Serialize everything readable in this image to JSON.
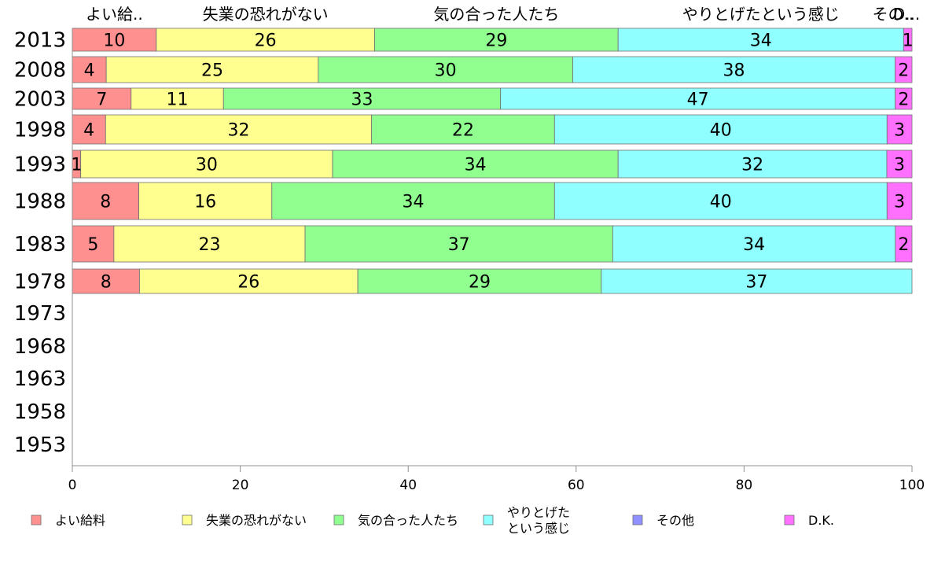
{
  "chart_data": {
    "type": "bar",
    "orientation": "horizontal",
    "stacked": "percent",
    "categories": [
      "2013",
      "2008",
      "2003",
      "1998",
      "1993",
      "1988",
      "1983",
      "1978",
      "1973",
      "1968",
      "1963",
      "1958",
      "1953"
    ],
    "series": [
      {
        "name": "よい給料",
        "top_label": "よい給..",
        "color": "#ff9090",
        "values": [
          10,
          4,
          7,
          4,
          1,
          8,
          5,
          8,
          null,
          null,
          null,
          null,
          null
        ]
      },
      {
        "name": "失業の恐れがない",
        "top_label": "失業の恐れがない",
        "color": "#ffff90",
        "values": [
          26,
          25,
          11,
          32,
          30,
          16,
          23,
          26,
          null,
          null,
          null,
          null,
          null
        ]
      },
      {
        "name": "気の合った人たち",
        "top_label": "気の合った人たち",
        "color": "#90ff90",
        "values": [
          29,
          30,
          33,
          22,
          34,
          34,
          37,
          29,
          null,
          null,
          null,
          null,
          null
        ]
      },
      {
        "name": "やりとげたという感じ",
        "legend_lines": [
          "やりとげた",
          "という感じ"
        ],
        "top_label": "やりとげたという感じ",
        "color": "#90ffff",
        "values": [
          34,
          38,
          47,
          40,
          32,
          40,
          34,
          37,
          null,
          null,
          null,
          null,
          null
        ]
      },
      {
        "name": "その他",
        "top_label": "その..",
        "color": "#9090ff",
        "values": [
          0,
          0,
          0,
          0,
          0,
          0,
          0,
          0,
          null,
          null,
          null,
          null,
          null
        ]
      },
      {
        "name": "D.K.",
        "top_label": "D...",
        "color": "#ff70ff",
        "values": [
          1,
          2,
          2,
          3,
          3,
          3,
          2,
          0,
          null,
          null,
          null,
          null,
          null
        ]
      }
    ],
    "xlim": [
      0,
      100
    ],
    "xticks": [
      0,
      20,
      40,
      60,
      80,
      100
    ],
    "title": "",
    "xlabel": "",
    "ylabel": "",
    "legend": "bottom",
    "grid": false
  }
}
